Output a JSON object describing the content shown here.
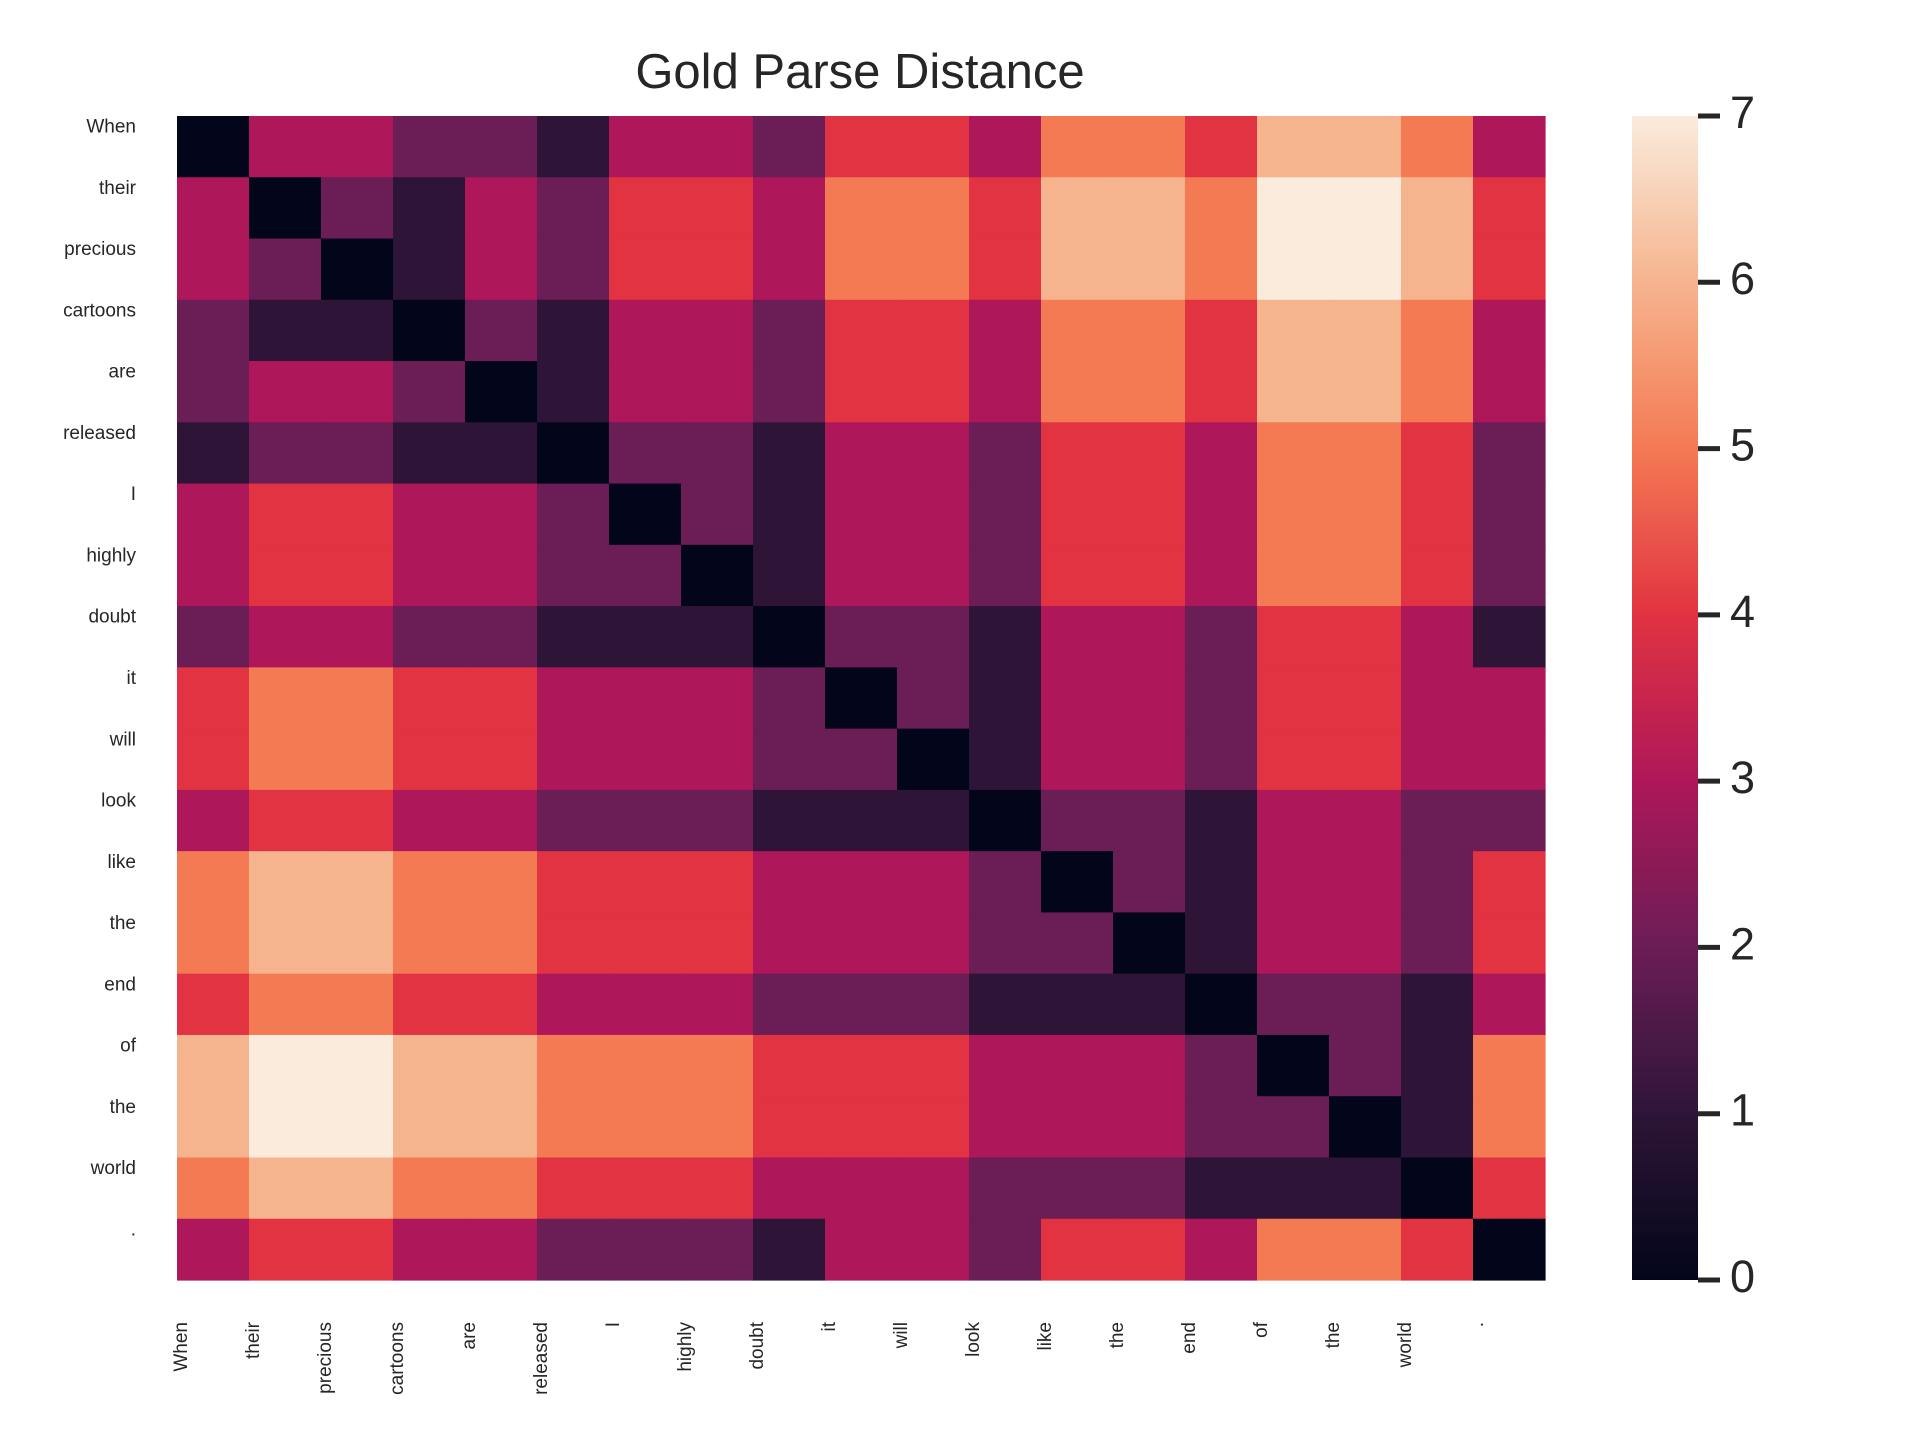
{
  "chart_data": {
    "type": "heatmap",
    "title": "Gold Parse Distance",
    "xlabel": "",
    "ylabel": "",
    "x_tokens": [
      "When",
      "their",
      "precious",
      "cartoons",
      "are",
      "released",
      "I",
      "highly",
      "doubt",
      "it",
      "will",
      "look",
      "like",
      "the",
      "end",
      "of",
      "the",
      "world",
      "."
    ],
    "y_tokens": [
      "When",
      "their",
      "precious",
      "cartoons",
      "are",
      "released",
      "I",
      "highly",
      "doubt",
      "it",
      "will",
      "look",
      "like",
      "the",
      "end",
      "of",
      "the",
      "world",
      "."
    ],
    "values": [
      [
        0,
        3,
        3,
        2,
        2,
        1,
        3,
        3,
        2,
        4,
        4,
        3,
        5,
        5,
        4,
        6,
        6,
        5,
        3
      ],
      [
        3,
        0,
        2,
        1,
        3,
        2,
        4,
        4,
        3,
        5,
        5,
        4,
        6,
        6,
        5,
        7,
        7,
        6,
        4
      ],
      [
        3,
        2,
        0,
        1,
        3,
        2,
        4,
        4,
        3,
        5,
        5,
        4,
        6,
        6,
        5,
        7,
        7,
        6,
        4
      ],
      [
        2,
        1,
        1,
        0,
        2,
        1,
        3,
        3,
        2,
        4,
        4,
        3,
        5,
        5,
        4,
        6,
        6,
        5,
        3
      ],
      [
        2,
        3,
        3,
        2,
        0,
        1,
        3,
        3,
        2,
        4,
        4,
        3,
        5,
        5,
        4,
        6,
        6,
        5,
        3
      ],
      [
        1,
        2,
        2,
        1,
        1,
        0,
        2,
        2,
        1,
        3,
        3,
        2,
        4,
        4,
        3,
        5,
        5,
        4,
        2
      ],
      [
        3,
        4,
        4,
        3,
        3,
        2,
        0,
        2,
        1,
        3,
        3,
        2,
        4,
        4,
        3,
        5,
        5,
        4,
        2
      ],
      [
        3,
        4,
        4,
        3,
        3,
        2,
        2,
        0,
        1,
        3,
        3,
        2,
        4,
        4,
        3,
        5,
        5,
        4,
        2
      ],
      [
        2,
        3,
        3,
        2,
        2,
        1,
        1,
        1,
        0,
        2,
        2,
        1,
        3,
        3,
        2,
        4,
        4,
        3,
        1
      ],
      [
        4,
        5,
        5,
        4,
        4,
        3,
        3,
        3,
        2,
        0,
        2,
        1,
        3,
        3,
        2,
        4,
        4,
        3,
        3
      ],
      [
        4,
        5,
        5,
        4,
        4,
        3,
        3,
        3,
        2,
        2,
        0,
        1,
        3,
        3,
        2,
        4,
        4,
        3,
        3
      ],
      [
        3,
        4,
        4,
        3,
        3,
        2,
        2,
        2,
        1,
        1,
        1,
        0,
        2,
        2,
        1,
        3,
        3,
        2,
        2
      ],
      [
        5,
        6,
        6,
        5,
        5,
        4,
        4,
        4,
        3,
        3,
        3,
        2,
        0,
        2,
        1,
        3,
        3,
        2,
        4
      ],
      [
        5,
        6,
        6,
        5,
        5,
        4,
        4,
        4,
        3,
        3,
        3,
        2,
        2,
        0,
        1,
        3,
        3,
        2,
        4
      ],
      [
        4,
        5,
        5,
        4,
        4,
        3,
        3,
        3,
        2,
        2,
        2,
        1,
        1,
        1,
        0,
        2,
        2,
        1,
        3
      ],
      [
        6,
        7,
        7,
        6,
        6,
        5,
        5,
        5,
        4,
        4,
        4,
        3,
        3,
        3,
        2,
        0,
        2,
        1,
        5
      ],
      [
        6,
        7,
        7,
        6,
        6,
        5,
        5,
        5,
        4,
        4,
        4,
        3,
        3,
        3,
        2,
        2,
        0,
        1,
        5
      ],
      [
        5,
        6,
        6,
        5,
        5,
        4,
        4,
        4,
        3,
        3,
        3,
        2,
        2,
        2,
        1,
        1,
        1,
        0,
        4
      ],
      [
        3,
        4,
        4,
        3,
        3,
        2,
        2,
        2,
        1,
        3,
        3,
        2,
        4,
        4,
        3,
        5,
        5,
        4,
        0
      ]
    ],
    "colorbar": {
      "min": 0,
      "max": 7,
      "ticks": [
        0,
        1,
        2,
        3,
        4,
        5,
        6,
        7
      ]
    },
    "colormap": {
      "0": "#03051a",
      "1": "#2e1537",
      "2": "#6b1d55",
      "3": "#ae1759",
      "4": "#e13342",
      "5": "#f47a54",
      "6": "#f6b48e",
      "7": "#faebdd"
    },
    "grid": false,
    "legend": "colorbar-right"
  }
}
